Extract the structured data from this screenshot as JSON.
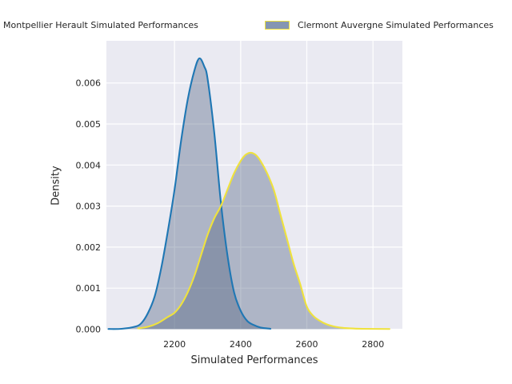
{
  "window": {
    "background": "#ffffff"
  },
  "legend": {
    "position": "top",
    "entries": [
      {
        "label": "Montpellier Herault Simulated Performances",
        "swatch_fill": "#8496B2",
        "swatch_edge": "#1f77b4"
      },
      {
        "label": "Clermont Auvergne Simulated Performances",
        "swatch_fill": "#8496B2",
        "swatch_edge": "#efe23d"
      }
    ]
  },
  "chart_data": {
    "type": "area",
    "subtype": "kde-density",
    "title": "",
    "xlabel": "Simulated Performances",
    "ylabel": "Density",
    "xlim": [
      1994,
      2889
    ],
    "ylim": [
      0,
      0.00702
    ],
    "xticks": [
      2200,
      2400,
      2600,
      2800
    ],
    "xtick_labels": [
      "2200",
      "2400",
      "2600",
      "2800"
    ],
    "yticks": [
      0,
      0.001,
      0.002,
      0.003,
      0.004,
      0.005,
      0.006
    ],
    "ytick_labels": [
      "0.000",
      "0.001",
      "0.002",
      "0.003",
      "0.004",
      "0.005",
      "0.006"
    ],
    "grid": true,
    "plot_bg": "#EAEAF2",
    "grid_color": "#ffffff",
    "fill_color": "rgba(75,95,125,0.38)",
    "tick_label_color": "#262626",
    "series": [
      {
        "name": "Montpellier Herault Simulated Performances",
        "line_color": "#1f77b4",
        "x": [
          2000,
          2040,
          2080,
          2100,
          2120,
          2140,
          2160,
          2180,
          2200,
          2220,
          2240,
          2260,
          2275,
          2290,
          2300,
          2320,
          2340,
          2360,
          2380,
          2400,
          2420,
          2440,
          2460,
          2490
        ],
        "y": [
          5e-06,
          1e-05,
          6e-05,
          0.00015,
          0.0004,
          0.0008,
          0.0015,
          0.0024,
          0.0034,
          0.0046,
          0.0056,
          0.0063,
          0.0066,
          0.0064,
          0.0061,
          0.0048,
          0.0031,
          0.0018,
          0.0009,
          0.00045,
          0.0002,
          0.0001,
          4e-05,
          1e-05
        ]
      },
      {
        "name": "Clermont Auvergne Simulated Performances",
        "line_color": "#efe23d",
        "x": [
          2090,
          2120,
          2150,
          2180,
          2200,
          2220,
          2240,
          2260,
          2280,
          2300,
          2320,
          2340,
          2360,
          2380,
          2400,
          2415,
          2430,
          2445,
          2460,
          2480,
          2500,
          2520,
          2540,
          2560,
          2580,
          2600,
          2620,
          2640,
          2660,
          2680,
          2700,
          2730,
          2770,
          2850
        ],
        "y": [
          2e-05,
          6e-05,
          0.00015,
          0.0003,
          0.0004,
          0.0006,
          0.0009,
          0.0013,
          0.0018,
          0.0023,
          0.0027,
          0.003,
          0.0034,
          0.0038,
          0.0041,
          0.00425,
          0.0043,
          0.00425,
          0.0041,
          0.0038,
          0.0034,
          0.0028,
          0.0022,
          0.0016,
          0.0011,
          0.00055,
          0.00032,
          0.0002,
          0.00012,
          7e-05,
          4e-05,
          2e-05,
          1e-05,
          5e-06
        ]
      }
    ]
  }
}
